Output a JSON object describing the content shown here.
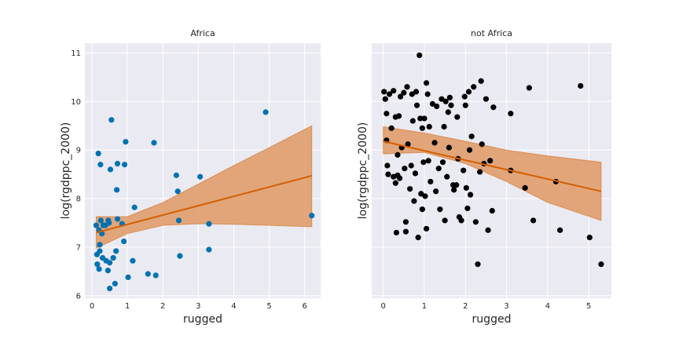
{
  "chart_data": [
    {
      "type": "scatter",
      "title": "Africa",
      "xlabel": "rugged",
      "ylabel": "log(rgdppc_2000)",
      "xlim": [
        -0.2,
        6.45
      ],
      "ylim": [
        5.95,
        11.2
      ],
      "xticks": [
        "0",
        "1",
        "2",
        "3",
        "4",
        "5",
        "6"
      ],
      "yticks": [
        "6",
        "7",
        "8",
        "9",
        "10",
        "11"
      ],
      "grid": true,
      "point_color": "#0072b2",
      "fit_color": "#d55e00",
      "band_color": "#e09d6b",
      "points": [
        [
          0.12,
          7.45
        ],
        [
          0.14,
          6.85
        ],
        [
          0.15,
          6.65
        ],
        [
          0.18,
          8.93
        ],
        [
          0.2,
          6.55
        ],
        [
          0.2,
          7.35
        ],
        [
          0.22,
          6.92
        ],
        [
          0.22,
          7.05
        ],
        [
          0.24,
          8.7
        ],
        [
          0.25,
          7.55
        ],
        [
          0.28,
          7.28
        ],
        [
          0.3,
          6.78
        ],
        [
          0.32,
          7.45
        ],
        [
          0.38,
          7.45
        ],
        [
          0.4,
          6.72
        ],
        [
          0.45,
          6.52
        ],
        [
          0.46,
          7.55
        ],
        [
          0.48,
          7.5
        ],
        [
          0.5,
          6.68
        ],
        [
          0.5,
          6.15
        ],
        [
          0.52,
          8.6
        ],
        [
          0.55,
          9.62
        ],
        [
          0.6,
          6.78
        ],
        [
          0.65,
          6.25
        ],
        [
          0.68,
          6.92
        ],
        [
          0.7,
          8.18
        ],
        [
          0.72,
          7.58
        ],
        [
          0.72,
          8.72
        ],
        [
          0.85,
          7.48
        ],
        [
          0.9,
          7.12
        ],
        [
          0.92,
          8.7
        ],
        [
          0.95,
          9.17
        ],
        [
          1.02,
          6.38
        ],
        [
          1.15,
          6.72
        ],
        [
          1.2,
          7.82
        ],
        [
          1.58,
          6.45
        ],
        [
          1.75,
          9.15
        ],
        [
          1.8,
          6.42
        ],
        [
          2.38,
          8.48
        ],
        [
          2.42,
          8.15
        ],
        [
          2.45,
          7.55
        ],
        [
          2.48,
          6.82
        ],
        [
          3.05,
          8.45
        ],
        [
          3.3,
          7.48
        ],
        [
          3.3,
          6.95
        ],
        [
          4.9,
          9.78
        ],
        [
          6.2,
          7.65
        ]
      ],
      "fit_line": [
        [
          0.12,
          7.3
        ],
        [
          6.2,
          8.47
        ]
      ],
      "band_upper": [
        [
          0.12,
          7.63
        ],
        [
          1.0,
          7.63
        ],
        [
          2.0,
          7.92
        ],
        [
          3.0,
          8.3
        ],
        [
          4.0,
          8.68
        ],
        [
          5.0,
          9.05
        ],
        [
          6.2,
          9.5
        ]
      ],
      "band_lower": [
        [
          0.12,
          6.98
        ],
        [
          1.0,
          7.28
        ],
        [
          2.0,
          7.45
        ],
        [
          3.0,
          7.48
        ],
        [
          4.0,
          7.47
        ],
        [
          5.0,
          7.45
        ],
        [
          6.2,
          7.42
        ]
      ]
    },
    {
      "type": "scatter",
      "title": "not Africa",
      "xlabel": "rugged",
      "ylabel": "log(rgdppc_2000)",
      "xlim": [
        -0.28,
        5.55
      ],
      "ylim": [
        5.95,
        11.2
      ],
      "xticks": [
        "0",
        "1",
        "2",
        "3",
        "4",
        "5"
      ],
      "yticks": [],
      "grid": true,
      "point_color": "#000000",
      "fit_color": "#d55e00",
      "band_color": "#e09d6b",
      "points": [
        [
          0.02,
          10.2
        ],
        [
          0.05,
          10.05
        ],
        [
          0.08,
          9.75
        ],
        [
          0.08,
          9.2
        ],
        [
          0.1,
          8.68
        ],
        [
          0.12,
          8.5
        ],
        [
          0.15,
          10.15
        ],
        [
          0.2,
          9.45
        ],
        [
          0.25,
          10.22
        ],
        [
          0.25,
          8.45
        ],
        [
          0.3,
          9.68
        ],
        [
          0.3,
          8.32
        ],
        [
          0.32,
          7.3
        ],
        [
          0.35,
          8.9
        ],
        [
          0.35,
          8.48
        ],
        [
          0.38,
          9.7
        ],
        [
          0.4,
          8.42
        ],
        [
          0.42,
          10.1
        ],
        [
          0.45,
          9.05
        ],
        [
          0.5,
          10.18
        ],
        [
          0.52,
          8.62
        ],
        [
          0.55,
          7.52
        ],
        [
          0.55,
          7.32
        ],
        [
          0.58,
          10.3
        ],
        [
          0.6,
          9.12
        ],
        [
          0.65,
          8.2
        ],
        [
          0.68,
          8.68
        ],
        [
          0.7,
          10.15
        ],
        [
          0.72,
          9.6
        ],
        [
          0.75,
          7.95
        ],
        [
          0.78,
          8.52
        ],
        [
          0.8,
          10.2
        ],
        [
          0.82,
          9.92
        ],
        [
          0.85,
          7.2
        ],
        [
          0.88,
          10.95
        ],
        [
          0.9,
          9.65
        ],
        [
          0.92,
          8.1
        ],
        [
          0.95,
          9.45
        ],
        [
          0.95,
          7.78
        ],
        [
          0.98,
          8.75
        ],
        [
          1.0,
          9.65
        ],
        [
          1.02,
          8.05
        ],
        [
          1.05,
          10.38
        ],
        [
          1.05,
          7.38
        ],
        [
          1.08,
          10.15
        ],
        [
          1.1,
          8.78
        ],
        [
          1.12,
          9.48
        ],
        [
          1.15,
          8.35
        ],
        [
          1.2,
          9.95
        ],
        [
          1.25,
          9.15
        ],
        [
          1.28,
          8.15
        ],
        [
          1.3,
          9.9
        ],
        [
          1.35,
          8.62
        ],
        [
          1.38,
          7.78
        ],
        [
          1.42,
          10.05
        ],
        [
          1.45,
          8.75
        ],
        [
          1.48,
          9.48
        ],
        [
          1.5,
          7.55
        ],
        [
          1.52,
          10.0
        ],
        [
          1.55,
          8.45
        ],
        [
          1.58,
          9.78
        ],
        [
          1.6,
          9.05
        ],
        [
          1.62,
          10.08
        ],
        [
          1.65,
          9.92
        ],
        [
          1.7,
          8.28
        ],
        [
          1.72,
          8.18
        ],
        [
          1.78,
          8.28
        ],
        [
          1.8,
          9.68
        ],
        [
          1.82,
          8.82
        ],
        [
          1.85,
          7.62
        ],
        [
          1.9,
          7.55
        ],
        [
          1.95,
          8.58
        ],
        [
          1.98,
          10.1
        ],
        [
          2.0,
          9.92
        ],
        [
          2.02,
          8.22
        ],
        [
          2.05,
          7.8
        ],
        [
          2.08,
          10.2
        ],
        [
          2.1,
          9.0
        ],
        [
          2.12,
          8.08
        ],
        [
          2.15,
          9.28
        ],
        [
          2.2,
          10.3
        ],
        [
          2.25,
          7.52
        ],
        [
          2.3,
          6.65
        ],
        [
          2.35,
          8.55
        ],
        [
          2.38,
          10.42
        ],
        [
          2.4,
          9.12
        ],
        [
          2.45,
          8.72
        ],
        [
          2.5,
          10.05
        ],
        [
          2.55,
          7.35
        ],
        [
          2.6,
          8.78
        ],
        [
          2.65,
          7.75
        ],
        [
          2.68,
          9.88
        ],
        [
          3.1,
          9.75
        ],
        [
          3.1,
          8.58
        ],
        [
          3.45,
          8.22
        ],
        [
          3.55,
          10.28
        ],
        [
          3.65,
          7.55
        ],
        [
          4.2,
          8.35
        ],
        [
          4.3,
          7.35
        ],
        [
          4.8,
          10.32
        ],
        [
          5.02,
          7.2
        ],
        [
          5.3,
          6.65
        ]
      ],
      "fit_line": [
        [
          0.0,
          9.18
        ],
        [
          5.3,
          8.15
        ]
      ],
      "band_upper": [
        [
          0.0,
          9.48
        ],
        [
          1.0,
          9.35
        ],
        [
          2.0,
          9.18
        ],
        [
          3.0,
          9.0
        ],
        [
          4.0,
          8.88
        ],
        [
          5.3,
          8.75
        ]
      ],
      "band_lower": [
        [
          0.0,
          8.92
        ],
        [
          1.0,
          8.95
        ],
        [
          2.0,
          8.72
        ],
        [
          3.0,
          8.35
        ],
        [
          4.0,
          7.92
        ],
        [
          5.3,
          7.55
        ]
      ]
    }
  ]
}
